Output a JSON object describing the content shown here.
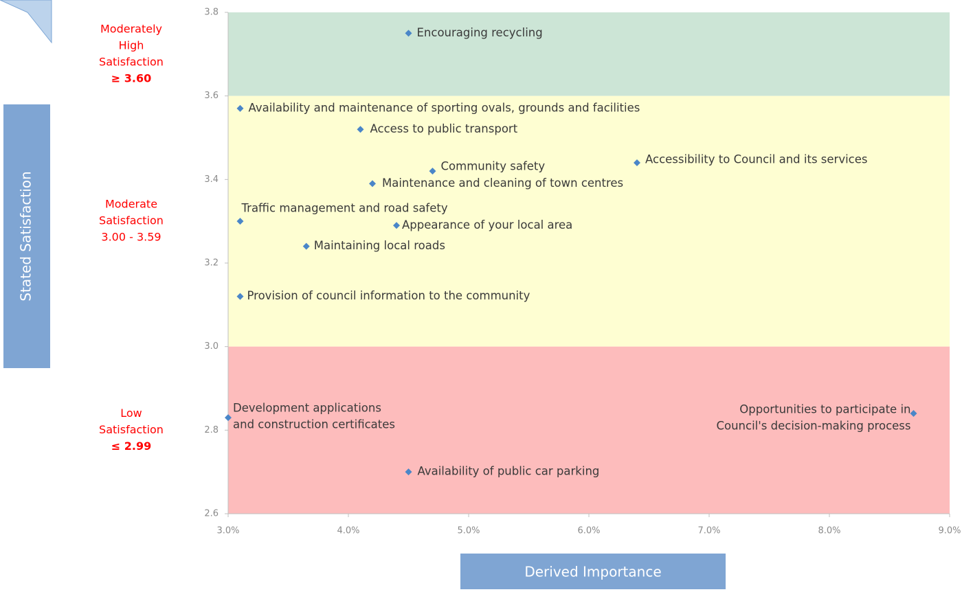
{
  "chart_data": {
    "type": "scatter",
    "x_label": "Derived Importance",
    "y_label": "Stated Satisfaction",
    "xlim": [
      3,
      9
    ],
    "xticks": [
      {
        "value": 3,
        "label": "3.0%"
      },
      {
        "value": 4,
        "label": "4.0%"
      },
      {
        "value": 5,
        "label": "5.0%"
      },
      {
        "value": 6,
        "label": "6.0%"
      },
      {
        "value": 7,
        "label": "7.0%"
      },
      {
        "value": 8,
        "label": "8.0%"
      },
      {
        "value": 9,
        "label": "9.0%"
      }
    ],
    "ylim": [
      2.6,
      3.8
    ],
    "yticks": [
      2.6,
      2.8,
      {
        "value": 3,
        "label": "3.0"
      },
      3.2,
      3.4,
      3.6,
      3.8
    ],
    "color": "#4a86c8",
    "bands": [
      {
        "from": 3.6,
        "to": 3.8,
        "color": "#cce5d6",
        "label": [
          "Moderately",
          "High",
          "Satisfaction"
        ],
        "threshold": "≥ 3.60"
      },
      {
        "from": 3.0,
        "to": 3.6,
        "color": "#fefed2",
        "label": [
          "Moderate",
          "Satisfaction",
          "3.00 - 3.59"
        ]
      },
      {
        "from": 2.6,
        "to": 3.0,
        "color": "#fdbcbc",
        "label": [
          "Low",
          "Satisfaction"
        ],
        "threshold": "≤ 2.99"
      }
    ],
    "labels": [
      [
        "Encouraging recycling"
      ],
      [
        "Availability and maintenance of sporting ovals, grounds and facilities"
      ],
      [
        "Access to public transport"
      ],
      [
        "Community safety"
      ],
      [
        "Accessibility to Council and its services"
      ],
      [
        "Maintenance and cleaning of town centres"
      ],
      [
        "Traffic management and road safety"
      ],
      [
        "Appearance of your local area"
      ],
      [
        "Maintaining local roads"
      ],
      [
        "Provision of council information to the community"
      ],
      [
        "Development applications",
        "and construction certificates"
      ],
      [
        "Opportunities to participate in",
        "Council's decision-making process"
      ],
      [
        "Availability of public car parking"
      ]
    ],
    "x": [
      4.5,
      3.1,
      4.1,
      4.7,
      6.4,
      4.2,
      3.1,
      4.4,
      3.65,
      3.1,
      3.0,
      8.7,
      4.5
    ],
    "values": [
      3.75,
      3.57,
      3.52,
      3.42,
      3.44,
      3.39,
      3.3,
      3.29,
      3.24,
      3.12,
      2.83,
      2.84,
      2.7
    ]
  }
}
